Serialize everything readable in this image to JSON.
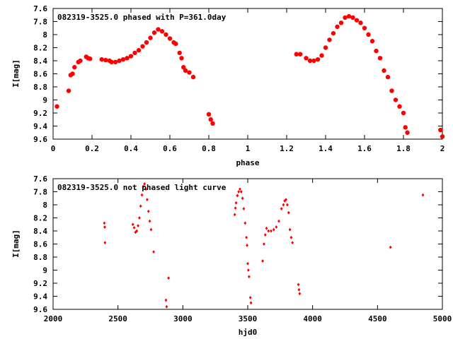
{
  "chart_data": [
    {
      "type": "scatter",
      "title": "082319-3525.0 phased with P=361.0day",
      "xlabel": "phase",
      "ylabel": "I[mag]",
      "xlim": [
        0,
        2
      ],
      "ylim": [
        9.6,
        7.6
      ],
      "y_inverted": true,
      "grid": false,
      "legend": "none",
      "color": "#ff0000",
      "marker": "filled-circle",
      "x_ticks": [
        "0",
        "0.2",
        "0.4",
        "0.6",
        "0.8",
        "1",
        "1.2",
        "1.4",
        "1.6",
        "1.8",
        "2"
      ],
      "y_ticks": [
        "7.6",
        "7.8",
        "8",
        "8.2",
        "8.4",
        "8.6",
        "8.8",
        "9",
        "9.2",
        "9.4",
        "9.6"
      ],
      "x_tick_values": [
        0,
        0.2,
        0.4,
        0.6,
        0.8,
        1.0,
        1.2,
        1.4,
        1.6,
        1.8,
        2.0
      ],
      "y_tick_values": [
        7.6,
        7.8,
        8.0,
        8.2,
        8.4,
        8.6,
        8.8,
        9.0,
        9.2,
        9.4,
        9.6
      ],
      "points": [
        [
          0.02,
          9.1
        ],
        [
          0.08,
          8.86
        ],
        [
          0.09,
          8.62
        ],
        [
          0.1,
          8.6
        ],
        [
          0.11,
          8.5
        ],
        [
          0.13,
          8.42
        ],
        [
          0.14,
          8.4
        ],
        [
          0.17,
          8.34
        ],
        [
          0.18,
          8.36
        ],
        [
          0.19,
          8.37
        ],
        [
          0.25,
          8.38
        ],
        [
          0.27,
          8.39
        ],
        [
          0.29,
          8.4
        ],
        [
          0.3,
          8.42
        ],
        [
          0.32,
          8.42
        ],
        [
          0.34,
          8.4
        ],
        [
          0.36,
          8.38
        ],
        [
          0.38,
          8.36
        ],
        [
          0.4,
          8.33
        ],
        [
          0.42,
          8.28
        ],
        [
          0.44,
          8.24
        ],
        [
          0.46,
          8.18
        ],
        [
          0.48,
          8.12
        ],
        [
          0.5,
          8.05
        ],
        [
          0.52,
          7.97
        ],
        [
          0.54,
          7.92
        ],
        [
          0.56,
          7.95
        ],
        [
          0.58,
          8.0
        ],
        [
          0.6,
          8.06
        ],
        [
          0.62,
          8.12
        ],
        [
          0.63,
          8.14
        ],
        [
          0.65,
          8.28
        ],
        [
          0.66,
          8.36
        ],
        [
          0.67,
          8.5
        ],
        [
          0.68,
          8.55
        ],
        [
          0.7,
          8.58
        ],
        [
          0.72,
          8.65
        ],
        [
          0.8,
          9.22
        ],
        [
          0.81,
          9.3
        ],
        [
          0.82,
          9.36
        ],
        [
          1.25,
          8.3
        ],
        [
          1.27,
          8.3
        ],
        [
          1.3,
          8.36
        ],
        [
          1.32,
          8.4
        ],
        [
          1.34,
          8.4
        ],
        [
          1.36,
          8.38
        ],
        [
          1.38,
          8.32
        ],
        [
          1.4,
          8.2
        ],
        [
          1.42,
          8.08
        ],
        [
          1.44,
          7.98
        ],
        [
          1.46,
          7.88
        ],
        [
          1.48,
          7.82
        ],
        [
          1.5,
          7.74
        ],
        [
          1.52,
          7.72
        ],
        [
          1.54,
          7.74
        ],
        [
          1.56,
          7.78
        ],
        [
          1.58,
          7.82
        ],
        [
          1.6,
          7.9
        ],
        [
          1.62,
          8.0
        ],
        [
          1.64,
          8.1
        ],
        [
          1.66,
          8.25
        ],
        [
          1.68,
          8.36
        ],
        [
          1.7,
          8.55
        ],
        [
          1.72,
          8.65
        ],
        [
          1.74,
          8.86
        ],
        [
          1.76,
          9.0
        ],
        [
          1.78,
          9.1
        ],
        [
          1.8,
          9.2
        ],
        [
          1.81,
          9.42
        ],
        [
          1.82,
          9.5
        ],
        [
          1.99,
          9.46
        ],
        [
          2.0,
          9.56
        ]
      ]
    },
    {
      "type": "scatter",
      "title": "082319-3525.0 not phased light curve",
      "xlabel": "hjd0",
      "ylabel": "I[mag]",
      "xlim": [
        2000,
        5000
      ],
      "ylim": [
        9.6,
        7.6
      ],
      "y_inverted": true,
      "grid": false,
      "legend": "none",
      "color": "#ff0000",
      "marker": "small-diamond",
      "x_ticks": [
        "2000",
        "2500",
        "3000",
        "3500",
        "4000",
        "4500",
        "5000"
      ],
      "y_ticks": [
        "7.6",
        "7.8",
        "8",
        "8.2",
        "8.4",
        "8.6",
        "8.8",
        "9",
        "9.2",
        "9.4",
        "9.6"
      ],
      "x_tick_values": [
        2000,
        2500,
        3000,
        3500,
        4000,
        4500,
        5000
      ],
      "y_tick_values": [
        7.6,
        7.8,
        8.0,
        8.2,
        8.4,
        8.6,
        8.8,
        9.0,
        9.2,
        9.4,
        9.6
      ],
      "points": [
        [
          2395,
          8.28
        ],
        [
          2398,
          8.34
        ],
        [
          2400,
          8.58
        ],
        [
          2615,
          8.3
        ],
        [
          2625,
          8.35
        ],
        [
          2635,
          8.42
        ],
        [
          2645,
          8.4
        ],
        [
          2655,
          8.32
        ],
        [
          2665,
          8.2
        ],
        [
          2675,
          8.02
        ],
        [
          2685,
          7.85
        ],
        [
          2695,
          7.72
        ],
        [
          2705,
          7.68
        ],
        [
          2715,
          7.76
        ],
        [
          2725,
          7.92
        ],
        [
          2735,
          8.1
        ],
        [
          2745,
          8.25
        ],
        [
          2755,
          8.38
        ],
        [
          2775,
          8.72
        ],
        [
          2870,
          9.46
        ],
        [
          2875,
          9.56
        ],
        [
          2890,
          9.12
        ],
        [
          3400,
          8.15
        ],
        [
          3405,
          8.05
        ],
        [
          3410,
          7.97
        ],
        [
          3420,
          7.86
        ],
        [
          3430,
          7.8
        ],
        [
          3440,
          7.76
        ],
        [
          3450,
          7.8
        ],
        [
          3460,
          7.9
        ],
        [
          3470,
          8.06
        ],
        [
          3480,
          8.28
        ],
        [
          3490,
          8.5
        ],
        [
          3495,
          8.62
        ],
        [
          3500,
          8.9
        ],
        [
          3505,
          9.0
        ],
        [
          3510,
          9.1
        ],
        [
          3520,
          9.42
        ],
        [
          3525,
          9.5
        ],
        [
          3615,
          8.86
        ],
        [
          3625,
          8.6
        ],
        [
          3635,
          8.46
        ],
        [
          3645,
          8.36
        ],
        [
          3660,
          8.4
        ],
        [
          3680,
          8.4
        ],
        [
          3700,
          8.38
        ],
        [
          3720,
          8.34
        ],
        [
          3740,
          8.25
        ],
        [
          3760,
          8.06
        ],
        [
          3775,
          8.0
        ],
        [
          3785,
          7.94
        ],
        [
          3795,
          7.92
        ],
        [
          3805,
          8.0
        ],
        [
          3815,
          8.12
        ],
        [
          3825,
          8.38
        ],
        [
          3835,
          8.5
        ],
        [
          3845,
          8.58
        ],
        [
          3890,
          9.22
        ],
        [
          3895,
          9.3
        ],
        [
          3900,
          9.36
        ],
        [
          4600,
          8.65
        ],
        [
          4850,
          7.85
        ]
      ]
    }
  ]
}
